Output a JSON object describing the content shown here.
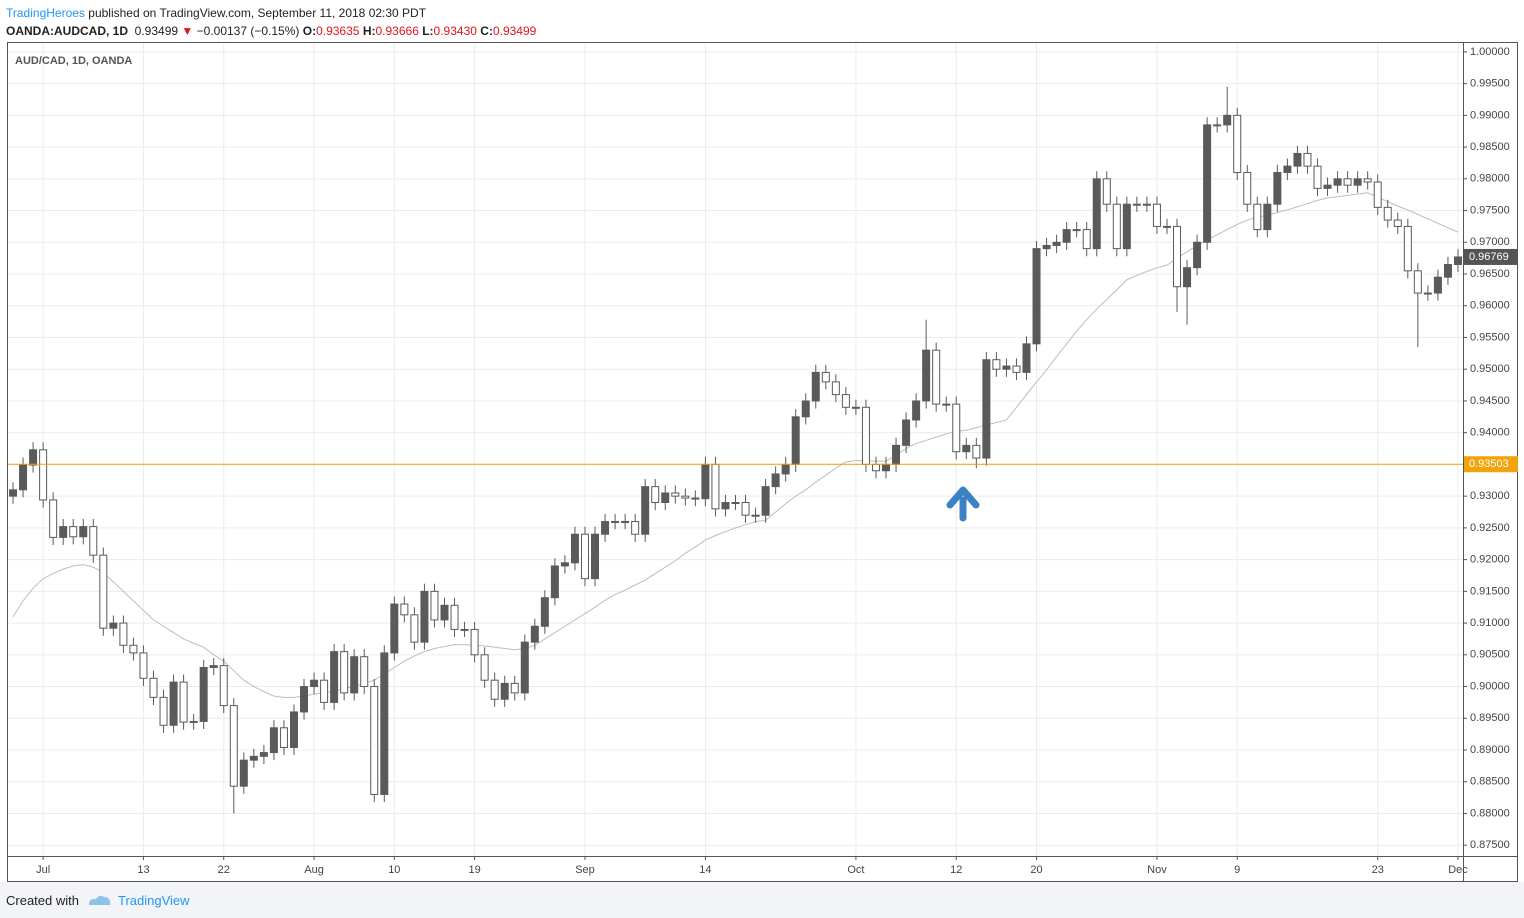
{
  "header": {
    "publisher": "TradingHeroes",
    "published": "published on TradingView.com, September 11, 2018 02:30 PDT",
    "symbol": "OANDA:AUDCAD, 1D",
    "price": "0.93499",
    "arrow": "▼",
    "change": "−0.00137 (−0.15%)",
    "o_label": "O:",
    "o": "0.93635",
    "h_label": "H:",
    "h": "0.93666",
    "l_label": "L:",
    "l": "0.93430",
    "c_label": "C:",
    "c": "0.93499"
  },
  "footer": {
    "created": "Created with",
    "brand": "TradingView"
  },
  "chart_data": {
    "type": "candlestick",
    "title": "AUD/CAD, 1D, OANDA",
    "up_color": "#5a5a5a",
    "down_color": "#ffffff",
    "ma_color": "#bdbdbd",
    "hline_color": "#f0a30a",
    "grid": true,
    "ylim": [
      0.8733,
      1.0014
    ],
    "xlim": [
      -0.5,
      144.5
    ],
    "yticks": [
      {
        "value": 0.875,
        "label": "0.87500"
      },
      {
        "value": 0.88,
        "label": "0.88000"
      },
      {
        "value": 0.885,
        "label": "0.88500"
      },
      {
        "value": 0.89,
        "label": "0.89000"
      },
      {
        "value": 0.895,
        "label": "0.89500"
      },
      {
        "value": 0.9,
        "label": "0.90000"
      },
      {
        "value": 0.905,
        "label": "0.90500"
      },
      {
        "value": 0.91,
        "label": "0.91000"
      },
      {
        "value": 0.915,
        "label": "0.91500"
      },
      {
        "value": 0.92,
        "label": "0.92000"
      },
      {
        "value": 0.925,
        "label": "0.92500"
      },
      {
        "value": 0.93,
        "label": "0.93000"
      },
      {
        "value": 0.935,
        "label": "0.93500"
      },
      {
        "value": 0.94,
        "label": "0.94000"
      },
      {
        "value": 0.945,
        "label": "0.94500"
      },
      {
        "value": 0.95,
        "label": "0.95000"
      },
      {
        "value": 0.955,
        "label": "0.95500"
      },
      {
        "value": 0.96,
        "label": "0.96000"
      },
      {
        "value": 0.965,
        "label": "0.96500"
      },
      {
        "value": 0.97,
        "label": "0.97000"
      },
      {
        "value": 0.975,
        "label": "0.97500"
      },
      {
        "value": 0.98,
        "label": "0.98000"
      },
      {
        "value": 0.985,
        "label": "0.98500"
      },
      {
        "value": 0.99,
        "label": "0.99000"
      },
      {
        "value": 0.995,
        "label": "0.99500"
      },
      {
        "value": 1,
        "label": "1.00000"
      }
    ],
    "xticks": [
      {
        "value": 3,
        "label": "Jul"
      },
      {
        "value": 13,
        "label": "13"
      },
      {
        "value": 21,
        "label": "22"
      },
      {
        "value": 30,
        "label": "Aug"
      },
      {
        "value": 38,
        "label": "10"
      },
      {
        "value": 46,
        "label": "19"
      },
      {
        "value": 57,
        "label": "Sep"
      },
      {
        "value": 69,
        "label": "14"
      },
      {
        "value": 84,
        "label": "Oct"
      },
      {
        "value": 94,
        "label": "12"
      },
      {
        "value": 102,
        "label": "20"
      },
      {
        "value": 114,
        "label": "Nov"
      },
      {
        "value": 122,
        "label": "9"
      },
      {
        "value": 136,
        "label": "23"
      },
      {
        "value": 144,
        "label": "Dec"
      }
    ],
    "hline": 0.93503,
    "last": 0.96769,
    "ohlc": [
      [
        0.93,
        0.9322,
        0.9288,
        0.931
      ],
      [
        0.931,
        0.9361,
        0.9298,
        0.9349
      ],
      [
        0.9349,
        0.9385,
        0.9337,
        0.9373
      ],
      [
        0.9373,
        0.9385,
        0.9282,
        0.9294
      ],
      [
        0.9294,
        0.9306,
        0.9223,
        0.9235
      ],
      [
        0.9235,
        0.9264,
        0.9223,
        0.9252
      ],
      [
        0.9252,
        0.9264,
        0.9224,
        0.9236
      ],
      [
        0.9236,
        0.9264,
        0.9224,
        0.9252
      ],
      [
        0.9252,
        0.9264,
        0.9195,
        0.9207
      ],
      [
        0.9207,
        0.9219,
        0.908,
        0.9092
      ],
      [
        0.9092,
        0.9112,
        0.908,
        0.91
      ],
      [
        0.91,
        0.9112,
        0.9053,
        0.9065
      ],
      [
        0.9065,
        0.9077,
        0.9041,
        0.9053
      ],
      [
        0.9053,
        0.9065,
        0.9001,
        0.9013
      ],
      [
        0.9013,
        0.9025,
        0.8971,
        0.8983
      ],
      [
        0.8983,
        0.8995,
        0.8927,
        0.8939
      ],
      [
        0.8939,
        0.9019,
        0.8927,
        0.9007
      ],
      [
        0.9007,
        0.9019,
        0.8932,
        0.8944
      ],
      [
        0.8944,
        0.8957,
        0.8932,
        0.8945
      ],
      [
        0.8945,
        0.9042,
        0.8933,
        0.903
      ],
      [
        0.903,
        0.9045,
        0.9018,
        0.9033
      ],
      [
        0.9033,
        0.9045,
        0.8958,
        0.897
      ],
      [
        0.897,
        0.8982,
        0.88,
        0.8843
      ],
      [
        0.8843,
        0.8896,
        0.8831,
        0.8884
      ],
      [
        0.8884,
        0.8902,
        0.8872,
        0.889
      ],
      [
        0.889,
        0.8908,
        0.8878,
        0.8896
      ],
      [
        0.8896,
        0.8947,
        0.8884,
        0.8935
      ],
      [
        0.8935,
        0.8947,
        0.8892,
        0.8904
      ],
      [
        0.8904,
        0.8972,
        0.8892,
        0.896
      ],
      [
        0.896,
        0.9012,
        0.8948,
        0.9
      ],
      [
        0.9,
        0.9022,
        0.8988,
        0.901
      ],
      [
        0.901,
        0.9022,
        0.8963,
        0.8975
      ],
      [
        0.8975,
        0.9067,
        0.8963,
        0.9055
      ],
      [
        0.9055,
        0.9067,
        0.8978,
        0.899
      ],
      [
        0.899,
        0.9059,
        0.8978,
        0.9047
      ],
      [
        0.9047,
        0.9059,
        0.8988,
        0.9
      ],
      [
        0.9,
        0.9012,
        0.8818,
        0.883
      ],
      [
        0.883,
        0.9065,
        0.8818,
        0.9053
      ],
      [
        0.9053,
        0.9142,
        0.9041,
        0.913
      ],
      [
        0.913,
        0.9142,
        0.9101,
        0.9113
      ],
      [
        0.9113,
        0.9125,
        0.9058,
        0.907
      ],
      [
        0.907,
        0.9162,
        0.9058,
        0.915
      ],
      [
        0.915,
        0.9162,
        0.9093,
        0.9105
      ],
      [
        0.9105,
        0.914,
        0.9093,
        0.9128
      ],
      [
        0.9128,
        0.914,
        0.9078,
        0.909
      ],
      [
        0.909,
        0.9102,
        0.9078,
        0.909
      ],
      [
        0.909,
        0.9102,
        0.9038,
        0.905
      ],
      [
        0.905,
        0.9062,
        0.8998,
        0.901
      ],
      [
        0.901,
        0.9022,
        0.8968,
        0.898
      ],
      [
        0.898,
        0.9017,
        0.8968,
        0.9005
      ],
      [
        0.9005,
        0.9017,
        0.8978,
        0.899
      ],
      [
        0.899,
        0.9082,
        0.8978,
        0.907
      ],
      [
        0.907,
        0.9107,
        0.9058,
        0.9095
      ],
      [
        0.9095,
        0.9152,
        0.9083,
        0.914
      ],
      [
        0.914,
        0.9202,
        0.9128,
        0.919
      ],
      [
        0.919,
        0.9207,
        0.9178,
        0.9195
      ],
      [
        0.9195,
        0.9252,
        0.9183,
        0.924
      ],
      [
        0.924,
        0.9252,
        0.9158,
        0.917
      ],
      [
        0.917,
        0.9252,
        0.9158,
        0.924
      ],
      [
        0.924,
        0.9272,
        0.9228,
        0.926
      ],
      [
        0.926,
        0.9272,
        0.9248,
        0.926
      ],
      [
        0.926,
        0.9272,
        0.9248,
        0.926
      ],
      [
        0.926,
        0.9272,
        0.9228,
        0.924
      ],
      [
        0.924,
        0.9327,
        0.9228,
        0.9315
      ],
      [
        0.9315,
        0.9327,
        0.9278,
        0.929
      ],
      [
        0.929,
        0.9317,
        0.9278,
        0.9305
      ],
      [
        0.9305,
        0.9317,
        0.9288,
        0.93
      ],
      [
        0.93,
        0.9312,
        0.9285,
        0.9297
      ],
      [
        0.9297,
        0.9309,
        0.9284,
        0.9296
      ],
      [
        0.9296,
        0.9362,
        0.9284,
        0.935
      ],
      [
        0.935,
        0.9362,
        0.9268,
        0.928
      ],
      [
        0.928,
        0.9302,
        0.9268,
        0.929
      ],
      [
        0.929,
        0.9302,
        0.9278,
        0.929
      ],
      [
        0.929,
        0.9302,
        0.9258,
        0.927
      ],
      [
        0.927,
        0.9282,
        0.9258,
        0.927
      ],
      [
        0.927,
        0.9327,
        0.9258,
        0.9315
      ],
      [
        0.9315,
        0.9347,
        0.9303,
        0.9335
      ],
      [
        0.9335,
        0.9362,
        0.9323,
        0.935
      ],
      [
        0.935,
        0.9437,
        0.9338,
        0.9425
      ],
      [
        0.9425,
        0.9462,
        0.9413,
        0.945
      ],
      [
        0.945,
        0.9507,
        0.9438,
        0.9495
      ],
      [
        0.9495,
        0.9507,
        0.9468,
        0.948
      ],
      [
        0.948,
        0.9492,
        0.9448,
        0.946
      ],
      [
        0.946,
        0.9472,
        0.9428,
        0.944
      ],
      [
        0.944,
        0.9452,
        0.9428,
        0.944
      ],
      [
        0.944,
        0.9452,
        0.9338,
        0.935
      ],
      [
        0.935,
        0.9362,
        0.9328,
        0.934
      ],
      [
        0.934,
        0.9362,
        0.9328,
        0.935
      ],
      [
        0.935,
        0.9392,
        0.9338,
        0.938
      ],
      [
        0.938,
        0.9432,
        0.9368,
        0.942
      ],
      [
        0.942,
        0.9462,
        0.9408,
        0.945
      ],
      [
        0.945,
        0.9578,
        0.9438,
        0.953
      ],
      [
        0.953,
        0.9542,
        0.9433,
        0.9445
      ],
      [
        0.9445,
        0.9457,
        0.9433,
        0.9445
      ],
      [
        0.9445,
        0.9457,
        0.9358,
        0.937
      ],
      [
        0.937,
        0.9392,
        0.9358,
        0.938
      ],
      [
        0.938,
        0.9392,
        0.9344,
        0.936
      ],
      [
        0.936,
        0.9527,
        0.9348,
        0.9515
      ],
      [
        0.9515,
        0.9527,
        0.9488,
        0.95
      ],
      [
        0.95,
        0.9517,
        0.9488,
        0.9505
      ],
      [
        0.9505,
        0.9517,
        0.9483,
        0.9495
      ],
      [
        0.9495,
        0.9552,
        0.9483,
        0.954
      ],
      [
        0.954,
        0.9702,
        0.9528,
        0.969
      ],
      [
        0.969,
        0.9707,
        0.9678,
        0.9695
      ],
      [
        0.9695,
        0.9712,
        0.9683,
        0.97
      ],
      [
        0.97,
        0.9732,
        0.9688,
        0.972
      ],
      [
        0.972,
        0.9732,
        0.9708,
        0.972
      ],
      [
        0.972,
        0.9732,
        0.9678,
        0.969
      ],
      [
        0.969,
        0.9812,
        0.9678,
        0.98
      ],
      [
        0.98,
        0.9812,
        0.9748,
        0.976
      ],
      [
        0.976,
        0.9772,
        0.9678,
        0.969
      ],
      [
        0.969,
        0.9772,
        0.9678,
        0.976
      ],
      [
        0.976,
        0.9772,
        0.9748,
        0.976
      ],
      [
        0.976,
        0.9772,
        0.9748,
        0.976
      ],
      [
        0.976,
        0.9772,
        0.9713,
        0.9725
      ],
      [
        0.9725,
        0.9737,
        0.9713,
        0.9725
      ],
      [
        0.9725,
        0.9737,
        0.959,
        0.963
      ],
      [
        0.963,
        0.9672,
        0.957,
        0.966
      ],
      [
        0.966,
        0.9712,
        0.9648,
        0.97
      ],
      [
        0.97,
        0.9897,
        0.9688,
        0.9885
      ],
      [
        0.9885,
        0.9897,
        0.9873,
        0.9885
      ],
      [
        0.9885,
        0.9945,
        0.9873,
        0.99
      ],
      [
        0.99,
        0.9912,
        0.9798,
        0.981
      ],
      [
        0.981,
        0.9822,
        0.9748,
        0.976
      ],
      [
        0.976,
        0.9772,
        0.9708,
        0.972
      ],
      [
        0.972,
        0.9772,
        0.9708,
        0.976
      ],
      [
        0.976,
        0.9822,
        0.9748,
        0.981
      ],
      [
        0.981,
        0.9832,
        0.9798,
        0.982
      ],
      [
        0.982,
        0.9852,
        0.9808,
        0.984
      ],
      [
        0.984,
        0.9852,
        0.9808,
        0.982
      ],
      [
        0.982,
        0.9832,
        0.9773,
        0.9785
      ],
      [
        0.9785,
        0.9802,
        0.9773,
        0.979
      ],
      [
        0.979,
        0.9812,
        0.9778,
        0.98
      ],
      [
        0.98,
        0.9812,
        0.9778,
        0.979
      ],
      [
        0.979,
        0.9812,
        0.9778,
        0.98
      ],
      [
        0.98,
        0.9812,
        0.9783,
        0.9795
      ],
      [
        0.9795,
        0.9807,
        0.9743,
        0.9755
      ],
      [
        0.9755,
        0.9767,
        0.9723,
        0.9735
      ],
      [
        0.9735,
        0.9747,
        0.9713,
        0.9725
      ],
      [
        0.9725,
        0.9737,
        0.9643,
        0.9655
      ],
      [
        0.9655,
        0.9667,
        0.9535,
        0.962
      ],
      [
        0.962,
        0.9632,
        0.9608,
        0.962
      ],
      [
        0.962,
        0.9657,
        0.9608,
        0.9645
      ],
      [
        0.9645,
        0.9677,
        0.9633,
        0.9665
      ],
      [
        0.9665,
        0.9689,
        0.9653,
        0.96769
      ]
    ],
    "ma": [
      0.911,
      0.9135,
      0.9155,
      0.917,
      0.9178,
      0.9185,
      0.919,
      0.9192,
      0.9188,
      0.918,
      0.9165,
      0.915,
      0.9135,
      0.912,
      0.9105,
      0.9095,
      0.9085,
      0.9075,
      0.9068,
      0.9062,
      0.905,
      0.904,
      0.9025,
      0.901,
      0.9,
      0.8992,
      0.8985,
      0.8983,
      0.8983,
      0.8985,
      0.8988,
      0.899,
      0.8993,
      0.8997,
      0.9,
      0.9005,
      0.901,
      0.902,
      0.903,
      0.904,
      0.9048,
      0.9055,
      0.906,
      0.9063,
      0.9066,
      0.9066,
      0.9065,
      0.9064,
      0.9062,
      0.906,
      0.9058,
      0.906,
      0.9065,
      0.9075,
      0.9085,
      0.9095,
      0.9105,
      0.9115,
      0.9125,
      0.9136,
      0.9145,
      0.9152,
      0.916,
      0.9168,
      0.9178,
      0.9188,
      0.9198,
      0.921,
      0.922,
      0.9231,
      0.9238,
      0.9244,
      0.925,
      0.9255,
      0.926,
      0.9262,
      0.9275,
      0.9288,
      0.93,
      0.931,
      0.9322,
      0.9333,
      0.9344,
      0.9354,
      0.9356,
      0.9356,
      0.9355,
      0.9355,
      0.9365,
      0.9375,
      0.9383,
      0.9388,
      0.9393,
      0.9398,
      0.9402,
      0.9404,
      0.9408,
      0.9412,
      0.9416,
      0.942,
      0.944,
      0.946,
      0.948,
      0.9499,
      0.952,
      0.954,
      0.956,
      0.9578,
      0.9595,
      0.961,
      0.9625,
      0.9641,
      0.9648,
      0.9654,
      0.966,
      0.9664,
      0.9675,
      0.9685,
      0.9695,
      0.9704,
      0.9712,
      0.972,
      0.9728,
      0.9735,
      0.9739,
      0.9743,
      0.9747,
      0.9751,
      0.9756,
      0.9761,
      0.9766,
      0.977,
      0.9772,
      0.9774,
      0.9776,
      0.9778,
      0.9771,
      0.9764,
      0.9757,
      0.9751,
      0.9744,
      0.9737,
      0.973,
      0.9723,
      0.9716
    ]
  }
}
